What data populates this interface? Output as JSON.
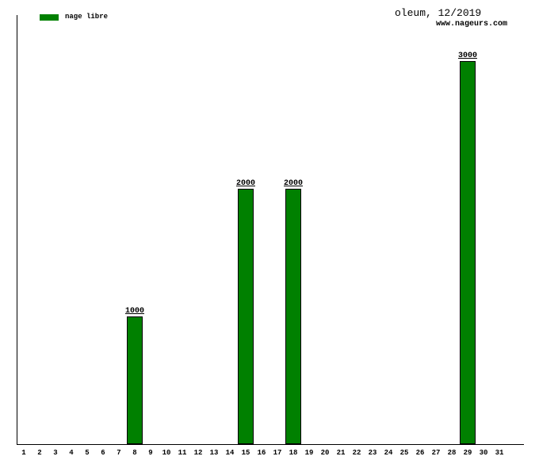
{
  "legend": {
    "label": "nage libre",
    "swatch_color": "#008000"
  },
  "header": {
    "title": "oleum, 12/2019",
    "subtitle": "www.nageurs.com"
  },
  "chart_data": {
    "type": "bar",
    "title": "oleum, 12/2019",
    "subtitle": "www.nageurs.com",
    "legend_entries": [
      "nage libre"
    ],
    "legend_position": "top-left",
    "xlabel": "",
    "ylabel": "",
    "categories": [
      1,
      2,
      3,
      4,
      5,
      6,
      7,
      8,
      9,
      10,
      11,
      12,
      13,
      14,
      15,
      16,
      17,
      18,
      19,
      20,
      21,
      22,
      23,
      24,
      25,
      26,
      27,
      28,
      29,
      30,
      31
    ],
    "values": [
      0,
      0,
      0,
      0,
      0,
      0,
      0,
      1000,
      0,
      0,
      0,
      0,
      0,
      0,
      2000,
      0,
      0,
      2000,
      0,
      0,
      0,
      0,
      0,
      0,
      0,
      0,
      0,
      0,
      3000,
      0,
      0
    ],
    "data_labels": [
      "1000",
      "2000",
      "2000",
      "3000"
    ],
    "bar_color": "#008000",
    "bar_border_color": "#000000",
    "ylim": [
      0,
      3360
    ],
    "grid": false,
    "y_ticks_shown": false
  }
}
